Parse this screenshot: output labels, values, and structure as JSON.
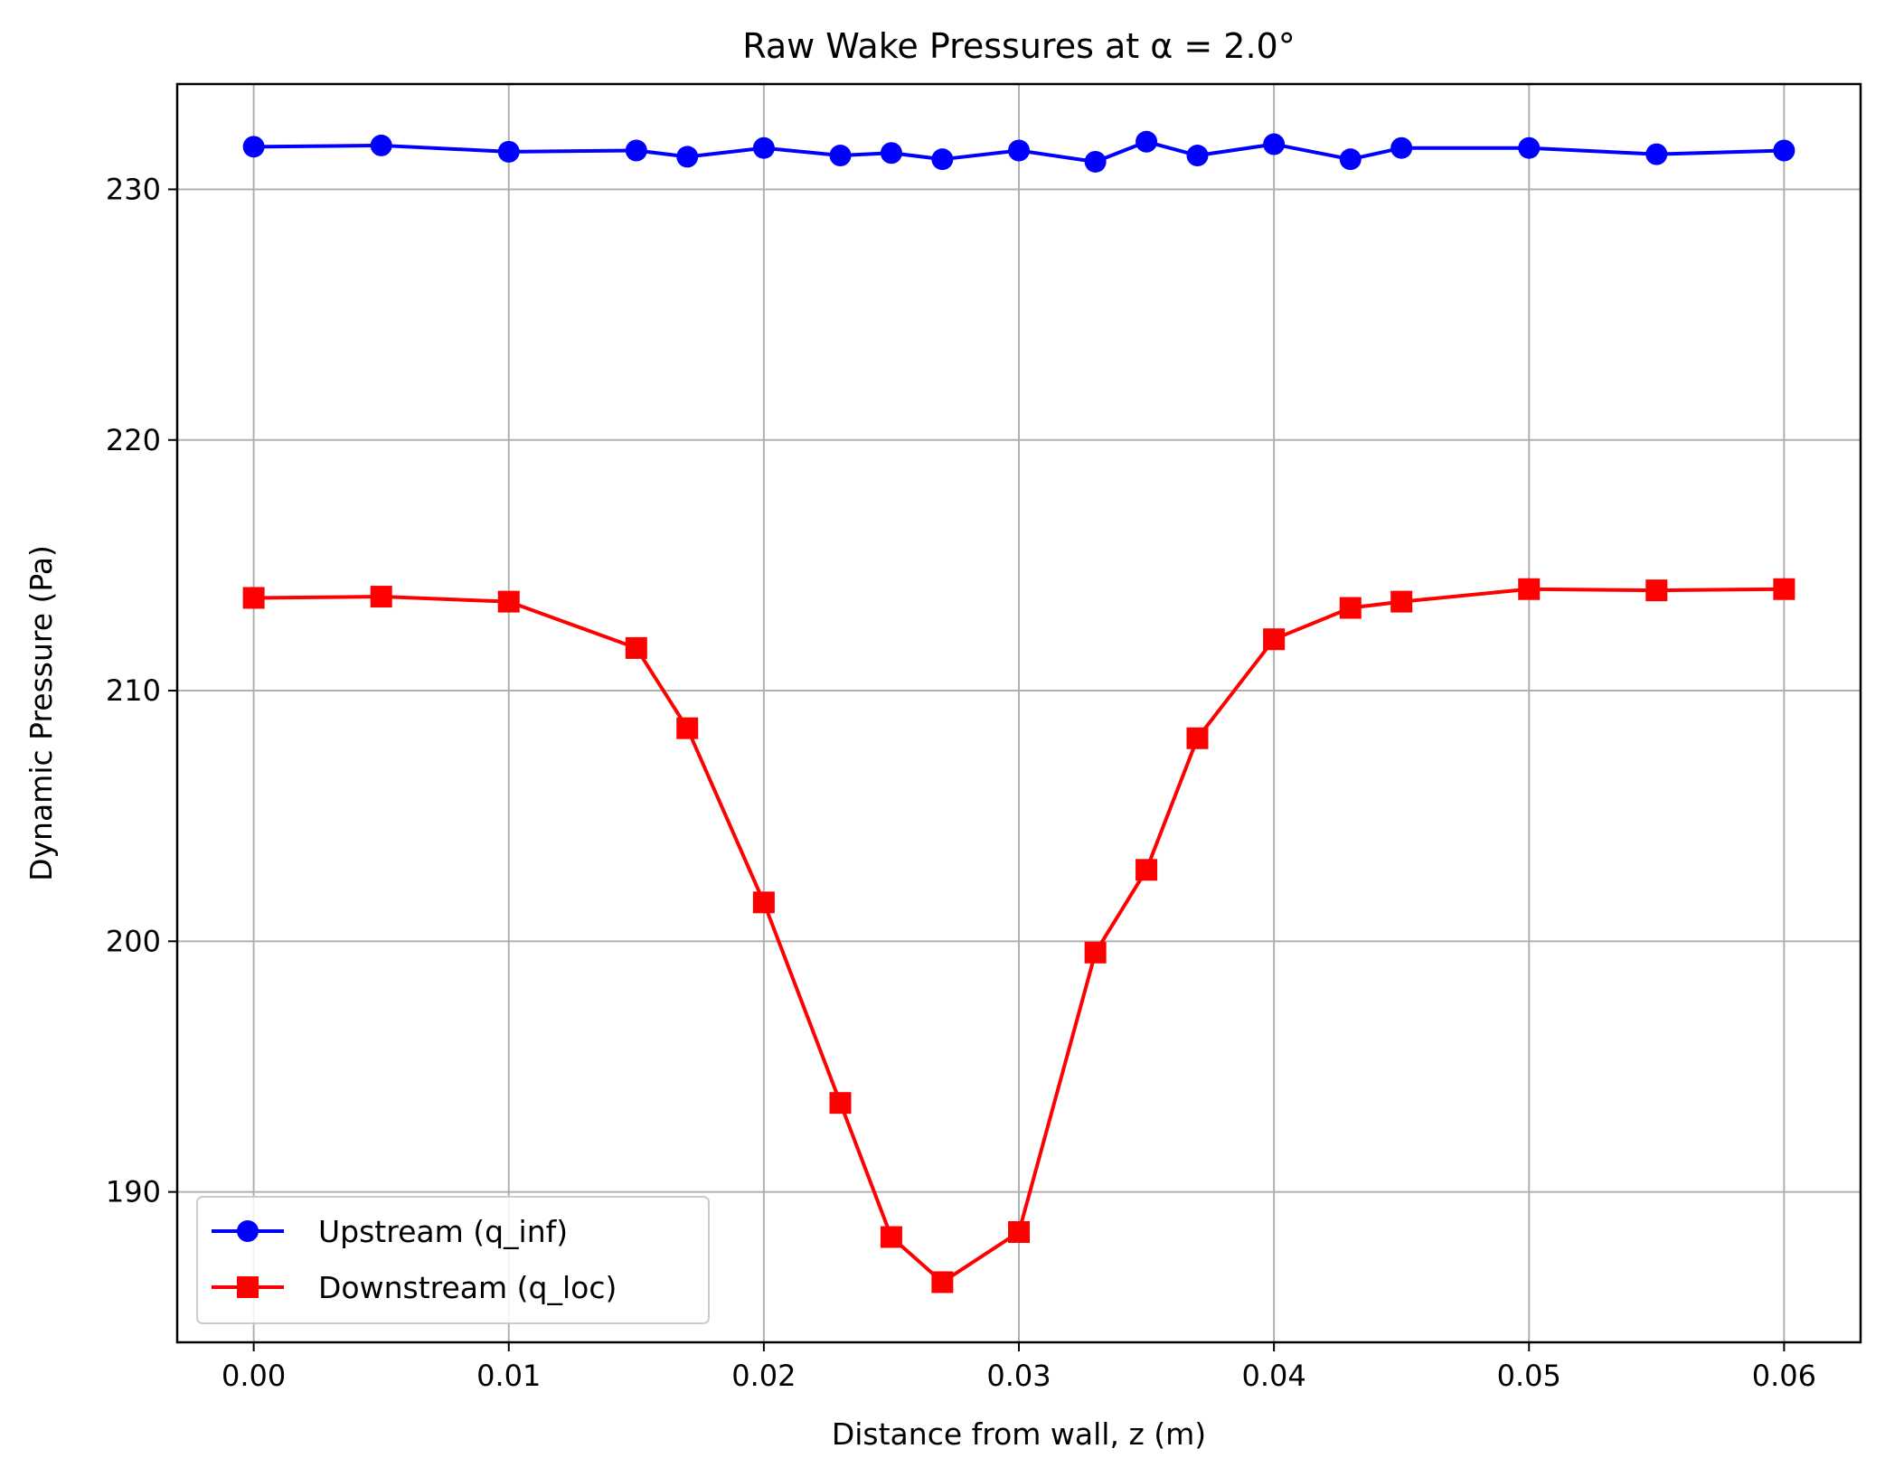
{
  "chart_data": {
    "type": "line",
    "title": "Raw Wake Pressures at α = 2.0°",
    "xlabel": "Distance from wall, z (m)",
    "ylabel": "Dynamic Pressure (Pa)",
    "xlim": [
      -0.003,
      0.063
    ],
    "ylim": [
      184.0,
      234.2
    ],
    "xticks": [
      0.0,
      0.01,
      0.02,
      0.03,
      0.04,
      0.05,
      0.06
    ],
    "xtick_labels": [
      "0.00",
      "0.01",
      "0.02",
      "0.03",
      "0.04",
      "0.05",
      "0.06"
    ],
    "yticks": [
      190,
      200,
      210,
      220,
      230
    ],
    "ytick_labels": [
      "190",
      "200",
      "210",
      "220",
      "230"
    ],
    "grid": true,
    "legend_position": "lower-left",
    "x": [
      0.0,
      0.005,
      0.01,
      0.015,
      0.017,
      0.02,
      0.023,
      0.025,
      0.027,
      0.03,
      0.033,
      0.035,
      0.037,
      0.04,
      0.043,
      0.045,
      0.05,
      0.055,
      0.06
    ],
    "series": [
      {
        "name": "Upstream (q_inf)",
        "color": "#0000ff",
        "marker": "circle",
        "values": [
          231.7,
          231.75,
          231.5,
          231.55,
          231.3,
          231.65,
          231.35,
          231.45,
          231.2,
          231.55,
          231.1,
          231.9,
          231.35,
          231.8,
          231.2,
          231.65,
          231.65,
          231.4,
          231.55
        ]
      },
      {
        "name": "Downstream (q_loc)",
        "color": "#ff0000",
        "marker": "square",
        "values": [
          213.7,
          213.75,
          213.55,
          211.7,
          208.5,
          201.55,
          193.55,
          188.2,
          186.4,
          188.4,
          199.55,
          202.85,
          208.1,
          212.05,
          213.3,
          213.55,
          214.05,
          214.0,
          214.05
        ]
      }
    ]
  }
}
